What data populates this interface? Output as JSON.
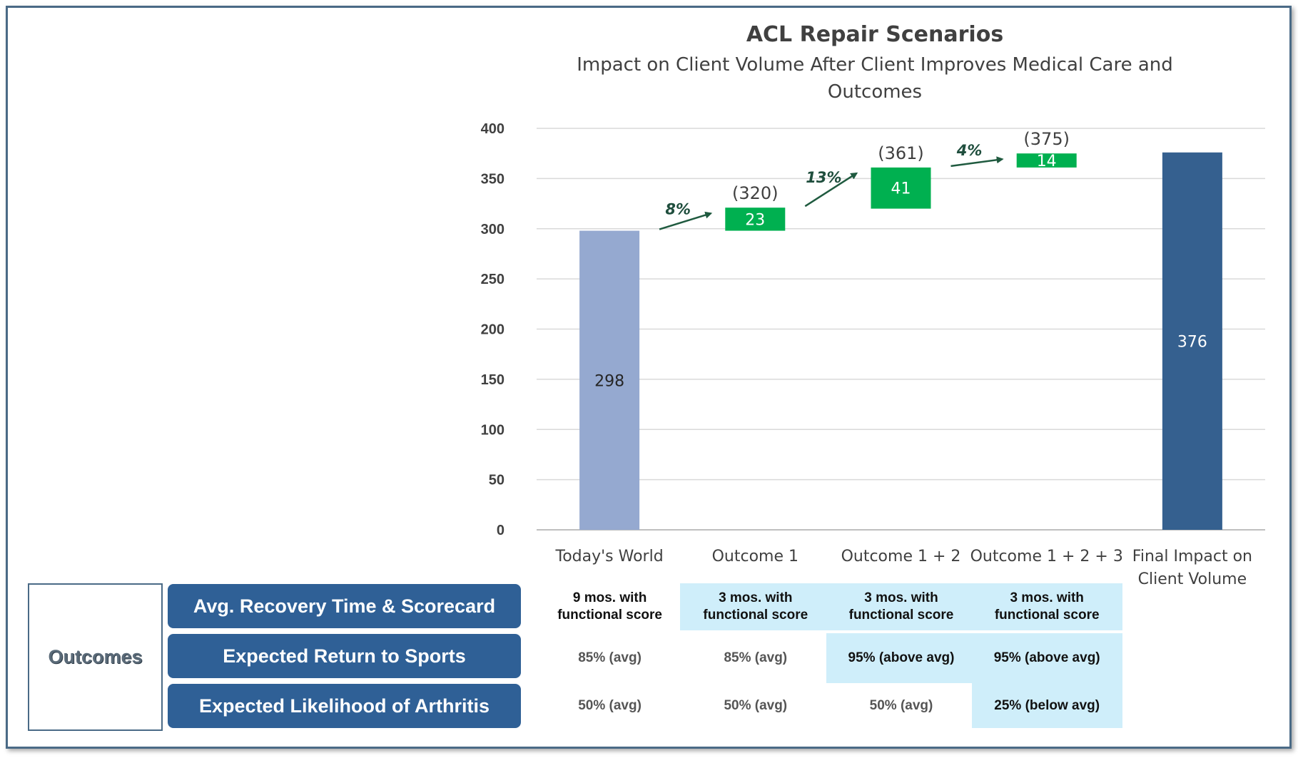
{
  "chart_data": {
    "type": "bar",
    "subtype": "waterfall",
    "title": "ACL Repair Scenarios",
    "subtitle": "Impact on Client Volume After Client Improves Medical Care and Outcomes",
    "categories": [
      "Today's World",
      "Outcome 1",
      "Outcome 1 + 2",
      "Outcome 1 + 2 + 3",
      "Final Impact on Client Volume"
    ],
    "bars": [
      {
        "category": "Today's World",
        "kind": "total",
        "value": 298,
        "label": "298",
        "color": "#95a9d0"
      },
      {
        "category": "Outcome 1",
        "kind": "increase",
        "base": 298,
        "value": 23,
        "label": "23",
        "cumulative_label": "(320)",
        "color": "#00b050"
      },
      {
        "category": "Outcome 1 + 2",
        "kind": "increase",
        "base": 320,
        "value": 41,
        "label": "41",
        "cumulative_label": "(361)",
        "color": "#00b050"
      },
      {
        "category": "Outcome 1 + 2 + 3",
        "kind": "increase",
        "base": 361,
        "value": 14,
        "label": "14",
        "cumulative_label": "(375)",
        "color": "#00b050"
      },
      {
        "category": "Final Impact on Client Volume",
        "kind": "total",
        "value": 376,
        "label": "376",
        "color": "#35608f"
      }
    ],
    "growth_arrows": [
      {
        "from": "Today's World",
        "to": "Outcome 1",
        "label": "8%"
      },
      {
        "from": "Outcome 1",
        "to": "Outcome 1 + 2",
        "label": "13%"
      },
      {
        "from": "Outcome 1 + 2",
        "to": "Outcome 1 + 2 + 3",
        "label": "4%"
      }
    ],
    "ylim": [
      0,
      400
    ],
    "yticks": [
      0,
      50,
      100,
      150,
      200,
      250,
      300,
      350,
      400
    ],
    "grid": true,
    "legend": "none"
  },
  "table": {
    "outcomes_label": "Outcomes",
    "rows": [
      {
        "label": "Avg. Recovery Time & Scorecard",
        "cells": [
          {
            "text": "9 mos. with functional score",
            "highlight": false
          },
          {
            "text": "3 mos. with functional score",
            "highlight": true
          },
          {
            "text": "3 mos. with functional score",
            "highlight": true
          },
          {
            "text": "3 mos. with functional score",
            "highlight": true
          }
        ]
      },
      {
        "label": "Expected Return to Sports",
        "cells": [
          {
            "text": "85% (avg)",
            "highlight": false
          },
          {
            "text": "85% (avg)",
            "highlight": false
          },
          {
            "text": "95% (above avg)",
            "highlight": true
          },
          {
            "text": "95% (above avg)",
            "highlight": true
          }
        ]
      },
      {
        "label": "Expected Likelihood of Arthritis",
        "cells": [
          {
            "text": "50% (avg)",
            "highlight": false
          },
          {
            "text": "50% (avg)",
            "highlight": false
          },
          {
            "text": "50% (avg)",
            "highlight": false
          },
          {
            "text": "25% (below avg)",
            "highlight": true
          }
        ]
      }
    ]
  }
}
